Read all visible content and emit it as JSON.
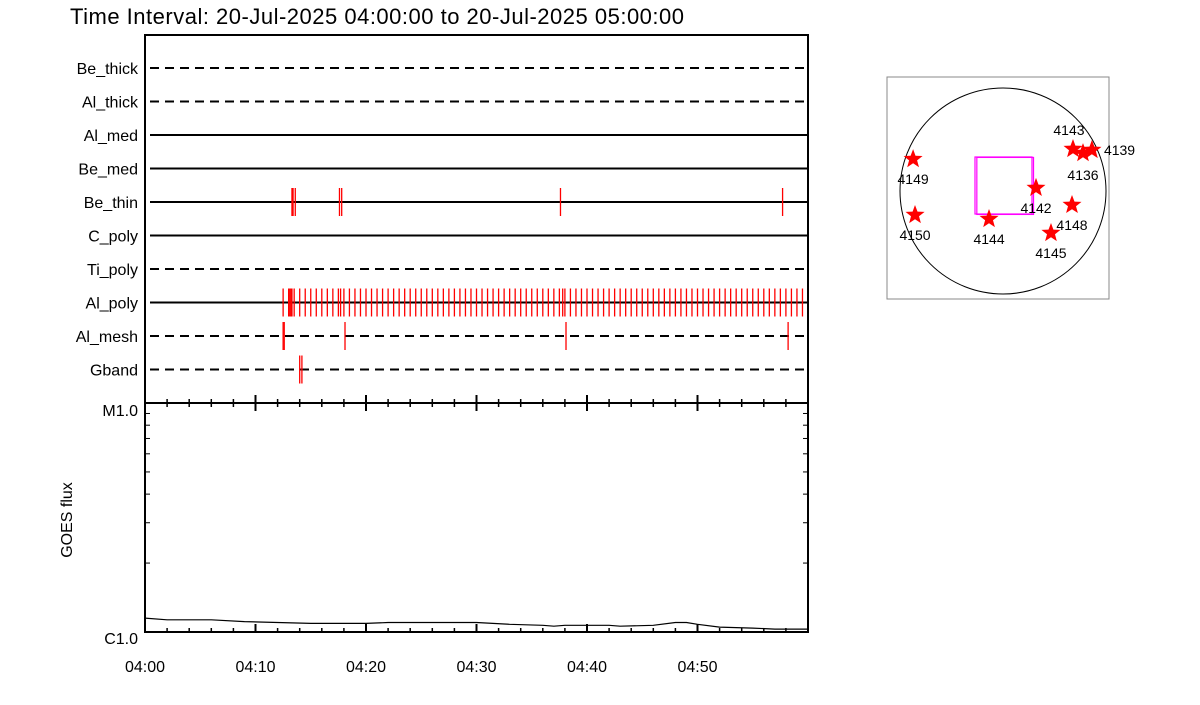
{
  "title": "Time Interval: 20-Jul-2025 04:00:00 to 20-Jul-2025 05:00:00",
  "colors": {
    "event": "#ff0000",
    "fov": "#ff00ff",
    "axis": "#000000",
    "star": "#ff0000"
  },
  "chart_data": [
    {
      "type": "scatter",
      "description_type": "filter timeline",
      "xlim": [
        "04:00:00",
        "05:00:00"
      ],
      "filters": [
        {
          "name": "Be_thick",
          "style": "dashed",
          "events": []
        },
        {
          "name": "Al_thick",
          "style": "dashed",
          "events": []
        },
        {
          "name": "Al_med",
          "style": "solid",
          "events": []
        },
        {
          "name": "Be_med",
          "style": "solid",
          "events": []
        },
        {
          "name": "Be_thin",
          "style": "solid",
          "events": [
            "04:13:18",
            "04:13:24",
            "04:13:36",
            "04:17:36",
            "04:17:48",
            "04:37:36",
            "04:57:42"
          ]
        },
        {
          "name": "C_poly",
          "style": "solid",
          "events": []
        },
        {
          "name": "Ti_poly",
          "style": "dashed",
          "events": []
        },
        {
          "name": "Al_poly",
          "style": "solid",
          "events": [
            "04:12:30",
            "04:13:00",
            "04:13:06",
            "04:13:12",
            "04:13:18",
            "04:13:30",
            "04:14:00",
            "04:14:30",
            "04:15:00",
            "04:15:30",
            "04:16:00",
            "04:16:30",
            "04:17:00",
            "04:17:30",
            "04:17:42",
            "04:18:00",
            "04:18:30",
            "04:19:00",
            "04:19:30",
            "04:20:00",
            "04:20:30",
            "04:21:00",
            "04:21:30",
            "04:22:00",
            "04:22:30",
            "04:23:00",
            "04:23:30",
            "04:24:00",
            "04:24:30",
            "04:25:00",
            "04:25:30",
            "04:26:00",
            "04:26:30",
            "04:27:00",
            "04:27:30",
            "04:28:00",
            "04:28:30",
            "04:29:00",
            "04:29:30",
            "04:30:00",
            "04:30:30",
            "04:31:00",
            "04:31:30",
            "04:32:00",
            "04:32:30",
            "04:33:00",
            "04:33:30",
            "04:34:00",
            "04:34:30",
            "04:35:00",
            "04:35:30",
            "04:36:00",
            "04:36:30",
            "04:37:00",
            "04:37:30",
            "04:37:48",
            "04:38:00",
            "04:38:30",
            "04:39:00",
            "04:39:30",
            "04:40:00",
            "04:40:30",
            "04:41:00",
            "04:41:30",
            "04:42:00",
            "04:42:30",
            "04:43:00",
            "04:43:30",
            "04:44:00",
            "04:44:30",
            "04:45:00",
            "04:45:30",
            "04:46:00",
            "04:46:30",
            "04:47:00",
            "04:47:30",
            "04:48:00",
            "04:48:30",
            "04:49:00",
            "04:49:30",
            "04:50:00",
            "04:50:30",
            "04:51:00",
            "04:51:30",
            "04:52:00",
            "04:52:30",
            "04:53:00",
            "04:53:30",
            "04:54:00",
            "04:54:30",
            "04:55:00",
            "04:55:30",
            "04:56:00",
            "04:56:30",
            "04:57:00",
            "04:57:30",
            "04:58:00",
            "04:58:30",
            "04:59:00",
            "04:59:30"
          ]
        },
        {
          "name": "Al_mesh",
          "style": "dashed",
          "events": [
            "04:12:30",
            "04:12:36",
            "04:18:06",
            "04:38:06",
            "04:58:12"
          ]
        },
        {
          "name": "Gband",
          "style": "dashed",
          "events": [
            "04:14:00",
            "04:14:12"
          ]
        }
      ]
    },
    {
      "type": "line",
      "ylabel": "GOES flux",
      "yscale": "log",
      "ylim": [
        1e-06,
        1e-05
      ],
      "ytick_labels": [
        "C1.0",
        "M1.0"
      ],
      "xlim": [
        "04:00:00",
        "05:00:00"
      ],
      "xtick_labels": [
        "04:00",
        "04:10",
        "04:20",
        "04:30",
        "04:40",
        "04:50"
      ],
      "series": [
        {
          "x": [
            "04:00",
            "04:02",
            "04:06",
            "04:09",
            "04:12",
            "04:15",
            "04:20",
            "04:22",
            "04:24",
            "04:26",
            "04:30",
            "04:33",
            "04:36",
            "04:37",
            "04:38",
            "04:42",
            "04:43",
            "04:46",
            "04:48",
            "04:49",
            "04:50",
            "04:52",
            "04:55",
            "04:57",
            "05:00"
          ],
          "y": [
            1.15e-06,
            1.13e-06,
            1.13e-06,
            1.11e-06,
            1.1e-06,
            1.09e-06,
            1.09e-06,
            1.1e-06,
            1.1e-06,
            1.1e-06,
            1.1e-06,
            1.08e-06,
            1.07e-06,
            1.06e-06,
            1.07e-06,
            1.07e-06,
            1.06e-06,
            1.07e-06,
            1.1e-06,
            1.1e-06,
            1.08e-06,
            1.05e-06,
            1.04e-06,
            1.03e-06,
            1.03e-06
          ]
        }
      ]
    },
    {
      "type": "scatter",
      "description_type": "solar disk map",
      "units": "arcsec",
      "disk_radius": 945,
      "active_regions": [
        {
          "label": "4149",
          "x": -825,
          "y": 293
        },
        {
          "label": "4150",
          "x": -807,
          "y": -220
        },
        {
          "label": "4144",
          "x": -128,
          "y": -257
        },
        {
          "label": "4142",
          "x": 303,
          "y": 28
        },
        {
          "label": "4148",
          "x": 633,
          "y": -128
        },
        {
          "label": "4145",
          "x": 440,
          "y": -385
        },
        {
          "label": "4143",
          "x": 642,
          "y": 385
        },
        {
          "label": "4136",
          "x": 734,
          "y": 348
        },
        {
          "label": "4139",
          "x": 816,
          "y": 376
        }
      ],
      "fov": [
        {
          "x": [
            -257,
            266
          ],
          "y": [
            -211,
            312
          ]
        },
        {
          "x": [
            -240,
            280
          ],
          "y": [
            -215,
            308
          ]
        }
      ]
    }
  ]
}
